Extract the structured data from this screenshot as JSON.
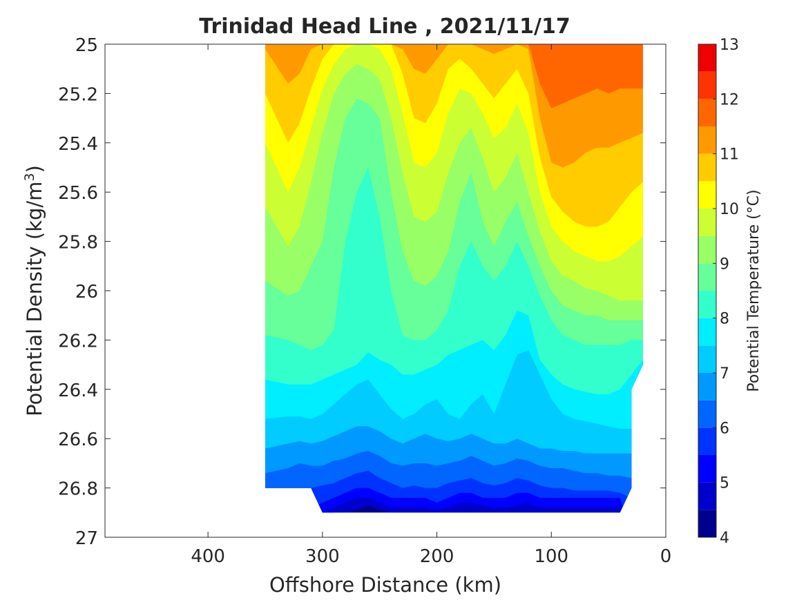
{
  "chart_data": {
    "type": "contour",
    "title": "Trinidad Head Line , 2021/11/17",
    "xlabel": "Offshore Distance (km)",
    "ylabel": "Potential Density (kg/m",
    "ylabel_sup": "3",
    "ylabel_close": ")",
    "xlim": [
      490,
      0
    ],
    "ylim": [
      25,
      27
    ],
    "xticks": [
      400,
      300,
      200,
      100,
      0
    ],
    "xtick_labels": [
      "400",
      "300",
      "200",
      "100",
      "0"
    ],
    "yticks": [
      25,
      25.2,
      25.4,
      25.6,
      25.8,
      26,
      26.2,
      26.4,
      26.6,
      26.8,
      27
    ],
    "ytick_labels": [
      "25",
      "25.2",
      "25.4",
      "25.6",
      "25.8",
      "26",
      "26.2",
      "26.4",
      "26.6",
      "26.8",
      "27"
    ],
    "colorbar": {
      "label": "Potential Temperature (°C)",
      "min": 4,
      "max": 13,
      "step": 0.5,
      "tick_values": [
        4,
        5,
        6,
        7,
        8,
        9,
        10,
        11,
        12,
        13
      ],
      "tick_labels": [
        "4",
        "5",
        "6",
        "7",
        "8",
        "9",
        "10",
        "11",
        "12",
        "13"
      ],
      "colors": [
        "#00008f",
        "#0000cc",
        "#0000ff",
        "#0033ff",
        "#0066ff",
        "#0099ff",
        "#00ccff",
        "#00eeff",
        "#33ffcc",
        "#66ff99",
        "#99ff66",
        "#ccff33",
        "#ffff00",
        "#ffcc00",
        "#ff9900",
        "#ff6600",
        "#ff3300",
        "#ee0000"
      ]
    },
    "domain": {
      "x_range": [
        20,
        350
      ],
      "density_range": [
        25,
        26.9
      ]
    },
    "stations_x": [
      350,
      330,
      320,
      310,
      300,
      290,
      280,
      270,
      260,
      250,
      240,
      230,
      220,
      210,
      200,
      190,
      180,
      170,
      160,
      150,
      140,
      130,
      120,
      110,
      100,
      90,
      80,
      70,
      60,
      50,
      40,
      30,
      20
    ],
    "isotherms": [
      {
        "t": 4.5,
        "sigma": [
          27.0,
          27.0,
          27.0,
          27.0,
          27.0,
          26.9,
          26.9,
          26.89,
          26.87,
          26.89,
          26.9,
          26.9,
          26.9,
          26.9,
          26.9,
          26.9,
          26.9,
          26.9,
          26.9,
          26.9,
          26.9,
          26.9,
          26.9,
          26.9,
          26.9,
          26.9,
          26.9,
          26.9,
          26.9,
          26.9,
          26.9,
          27.0,
          27.0
        ]
      },
      {
        "t": 5.0,
        "sigma": [
          27.0,
          27.0,
          27.0,
          27.0,
          26.9,
          26.88,
          26.86,
          26.84,
          26.84,
          26.86,
          26.88,
          26.88,
          26.88,
          26.88,
          26.89,
          26.88,
          26.86,
          26.86,
          26.87,
          26.88,
          26.88,
          26.87,
          26.86,
          26.88,
          26.88,
          26.88,
          26.88,
          26.88,
          26.88,
          26.88,
          26.88,
          27.0,
          27.0
        ]
      },
      {
        "t": 5.5,
        "sigma": [
          27.0,
          27.0,
          27.0,
          26.88,
          26.86,
          26.84,
          26.82,
          26.8,
          26.8,
          26.82,
          26.84,
          26.84,
          26.84,
          26.84,
          26.86,
          26.84,
          26.82,
          26.82,
          26.84,
          26.84,
          26.84,
          26.82,
          26.82,
          26.84,
          26.84,
          26.84,
          26.84,
          26.84,
          26.84,
          26.84,
          26.84,
          27.0,
          27.0
        ]
      },
      {
        "t": 6.0,
        "sigma": [
          26.8,
          26.8,
          26.8,
          26.8,
          26.79,
          26.78,
          26.76,
          26.74,
          26.73,
          26.76,
          26.78,
          26.8,
          26.79,
          26.8,
          26.8,
          26.78,
          26.77,
          26.76,
          26.78,
          26.79,
          26.78,
          26.76,
          26.77,
          26.79,
          26.8,
          26.8,
          26.81,
          26.81,
          26.81,
          26.81,
          26.82,
          26.84,
          26.84
        ]
      },
      {
        "t": 6.5,
        "sigma": [
          26.74,
          26.72,
          26.7,
          26.71,
          26.71,
          26.69,
          26.68,
          26.66,
          26.65,
          26.67,
          26.7,
          26.71,
          26.7,
          26.7,
          26.71,
          26.7,
          26.69,
          26.67,
          26.69,
          26.71,
          26.7,
          26.68,
          26.69,
          26.71,
          26.72,
          26.72,
          26.73,
          26.74,
          26.74,
          26.75,
          26.75,
          26.76,
          26.76
        ]
      },
      {
        "t": 7.0,
        "sigma": [
          26.64,
          26.62,
          26.61,
          26.62,
          26.61,
          26.59,
          26.57,
          26.55,
          26.55,
          26.57,
          26.6,
          26.62,
          26.6,
          26.58,
          26.6,
          26.61,
          26.6,
          26.58,
          26.6,
          26.62,
          26.62,
          26.6,
          26.62,
          26.64,
          26.64,
          26.65,
          26.65,
          26.66,
          26.66,
          26.66,
          26.66,
          26.66,
          26.66
        ]
      },
      {
        "t": 7.5,
        "sigma": [
          26.52,
          26.51,
          26.51,
          26.52,
          26.5,
          26.46,
          26.42,
          26.38,
          26.36,
          26.42,
          26.48,
          26.52,
          26.5,
          26.46,
          26.44,
          26.5,
          26.52,
          26.46,
          26.42,
          26.5,
          26.38,
          26.26,
          26.24,
          26.34,
          26.44,
          26.5,
          26.52,
          26.53,
          26.54,
          26.55,
          26.56,
          26.56,
          26.56
        ]
      },
      {
        "t": 8.0,
        "sigma": [
          26.36,
          26.38,
          26.38,
          26.38,
          26.36,
          26.34,
          26.32,
          26.3,
          26.25,
          26.28,
          26.3,
          26.34,
          26.34,
          26.32,
          26.3,
          26.26,
          26.24,
          26.22,
          26.2,
          26.24,
          26.18,
          26.08,
          26.1,
          26.28,
          26.34,
          26.38,
          26.4,
          26.41,
          26.42,
          26.42,
          26.4,
          26.34,
          26.28
        ]
      },
      {
        "t": 8.5,
        "sigma": [
          26.18,
          26.2,
          26.22,
          26.24,
          26.22,
          26.16,
          25.8,
          25.6,
          25.5,
          25.7,
          26.0,
          26.18,
          26.2,
          26.2,
          26.16,
          26.08,
          25.9,
          25.8,
          25.9,
          25.96,
          25.9,
          25.8,
          25.9,
          26.02,
          26.12,
          26.18,
          26.2,
          26.22,
          26.22,
          26.22,
          26.22,
          26.2,
          26.2
        ]
      },
      {
        "t": 9.0,
        "sigma": [
          25.96,
          26.02,
          26.0,
          25.9,
          25.8,
          25.5,
          25.3,
          25.22,
          25.24,
          25.3,
          25.6,
          25.84,
          25.96,
          25.98,
          25.94,
          25.84,
          25.64,
          25.52,
          25.72,
          25.82,
          25.72,
          25.64,
          25.78,
          25.9,
          26.0,
          26.06,
          26.08,
          26.1,
          26.1,
          26.12,
          26.12,
          26.12,
          26.12
        ]
      },
      {
        "t": 9.5,
        "sigma": [
          25.66,
          25.82,
          25.74,
          25.56,
          25.36,
          25.2,
          25.12,
          25.08,
          25.1,
          25.14,
          25.3,
          25.52,
          25.7,
          25.72,
          25.68,
          25.52,
          25.4,
          25.34,
          25.46,
          25.6,
          25.54,
          25.44,
          25.6,
          25.76,
          25.88,
          25.94,
          25.96,
          25.99,
          26.0,
          26.02,
          26.04,
          26.04,
          26.04
        ]
      },
      {
        "t": 10.0,
        "sigma": [
          25.4,
          25.6,
          25.5,
          25.34,
          25.18,
          25.08,
          25.02,
          25.0,
          25.0,
          25.02,
          25.1,
          25.28,
          25.48,
          25.5,
          25.44,
          25.28,
          25.18,
          25.2,
          25.28,
          25.38,
          25.34,
          25.24,
          25.36,
          25.6,
          25.74,
          25.8,
          25.84,
          25.86,
          25.88,
          25.88,
          25.86,
          25.82,
          25.78
        ]
      },
      {
        "t": 10.5,
        "sigma": [
          25.2,
          25.4,
          25.32,
          25.18,
          25.06,
          25.0,
          25.0,
          25.0,
          25.0,
          25.0,
          25.0,
          25.12,
          25.3,
          25.32,
          25.24,
          25.1,
          25.06,
          25.1,
          25.16,
          25.22,
          25.16,
          25.1,
          25.2,
          25.46,
          25.62,
          25.68,
          25.72,
          25.74,
          25.74,
          25.72,
          25.66,
          25.6,
          25.56
        ]
      },
      {
        "t": 11.0,
        "sigma": [
          25.02,
          25.16,
          25.12,
          25.02,
          25.0,
          25.0,
          25.0,
          25.0,
          25.0,
          25.0,
          25.0,
          25.02,
          25.1,
          25.12,
          25.06,
          25.0,
          25.0,
          25.0,
          25.02,
          25.04,
          25.02,
          25.0,
          25.02,
          25.3,
          25.48,
          25.5,
          25.48,
          25.44,
          25.42,
          25.42,
          25.4,
          25.38,
          25.36
        ]
      },
      {
        "t": 11.5,
        "sigma": [
          25.0,
          25.0,
          25.0,
          25.0,
          25.0,
          25.0,
          25.0,
          25.0,
          25.0,
          25.0,
          25.0,
          25.0,
          25.0,
          25.0,
          25.0,
          25.0,
          25.0,
          25.0,
          25.0,
          25.0,
          25.0,
          25.0,
          25.0,
          25.16,
          25.26,
          25.24,
          25.22,
          25.2,
          25.18,
          25.2,
          25.18,
          25.18,
          25.18
        ]
      },
      {
        "t": 12.0,
        "sigma": [
          25.0,
          25.0,
          25.0,
          25.0,
          25.0,
          25.0,
          25.0,
          25.0,
          25.0,
          25.0,
          25.0,
          25.0,
          25.0,
          25.0,
          25.0,
          25.0,
          25.0,
          25.0,
          25.0,
          25.0,
          25.0,
          25.0,
          25.0,
          25.0,
          25.0,
          25.0,
          25.0,
          25.0,
          25.0,
          25.0,
          25.0,
          25.0,
          25.0
        ]
      }
    ]
  }
}
